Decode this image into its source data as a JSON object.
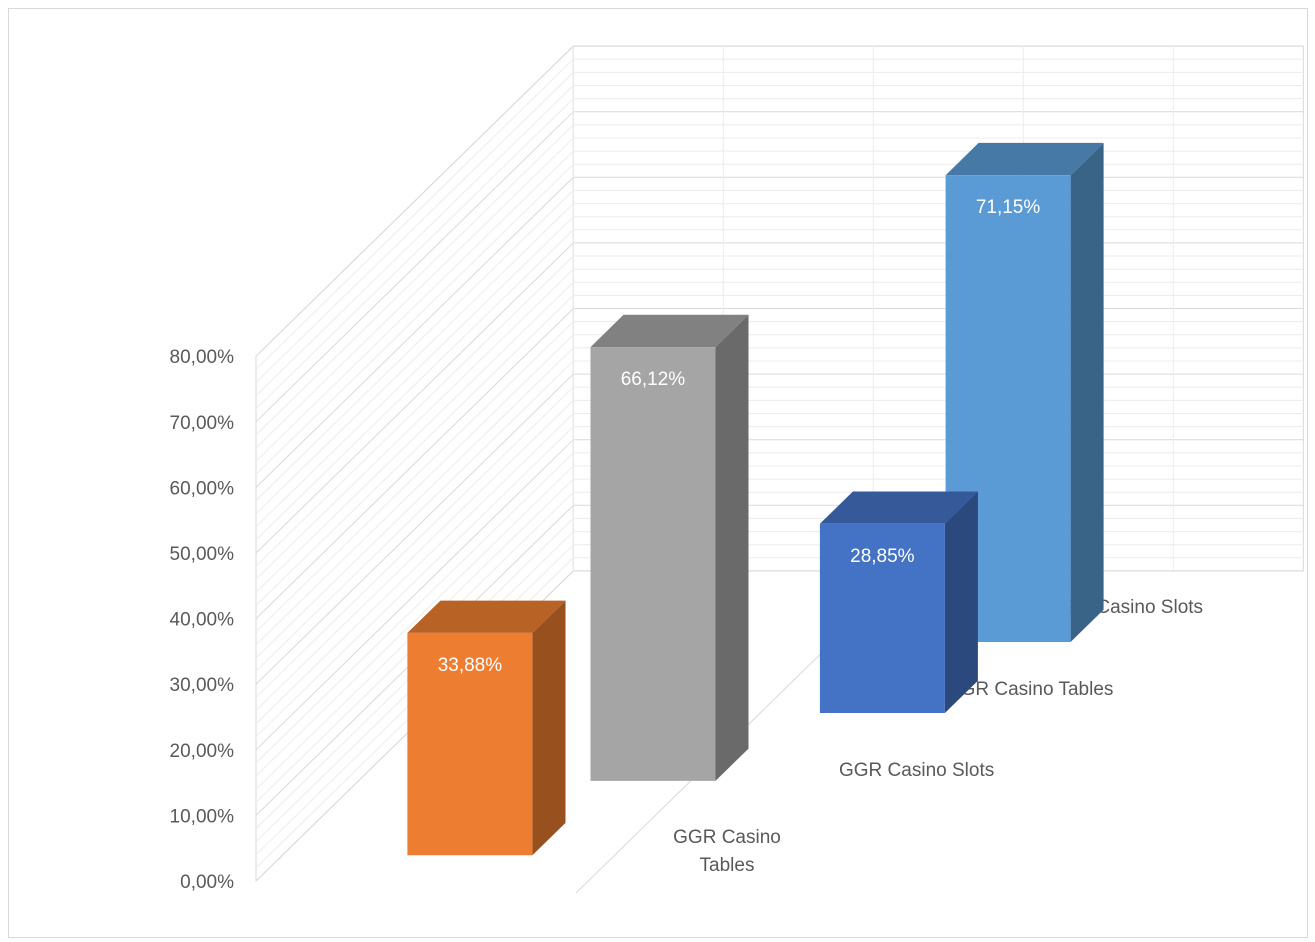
{
  "chart_data": {
    "type": "bar",
    "subtype": "3d-column",
    "title": "",
    "xlabel": "",
    "ylabel": "",
    "ylim": [
      0,
      80
    ],
    "y_ticks": [
      "0,00%",
      "10,00%",
      "20,00%",
      "30,00%",
      "40,00%",
      "50,00%",
      "60,00%",
      "70,00%",
      "80,00%"
    ],
    "grid": true,
    "categories": [
      {
        "name": "GGR Casino Tables",
        "label_lines": [
          "GGR Casino",
          "Tables"
        ],
        "value": 33.88,
        "label": "33,88%",
        "color": "#ED7D31"
      },
      {
        "name": "GGR Casino Slots",
        "label_lines": [
          "GGR Casino Slots"
        ],
        "value": 66.12,
        "label": "66,12%",
        "color": "#A5A5A5"
      },
      {
        "name": "TGR Casino Tables",
        "label_lines": [
          "TGR Casino Tables"
        ],
        "value": 28.85,
        "label": "28,85%",
        "color": "#4472C4"
      },
      {
        "name": "TGR Casino Slots",
        "label_lines": [
          "TGR Casino Slots"
        ],
        "value": 71.15,
        "label": "71,15%",
        "color": "#5B9BD5"
      }
    ]
  }
}
